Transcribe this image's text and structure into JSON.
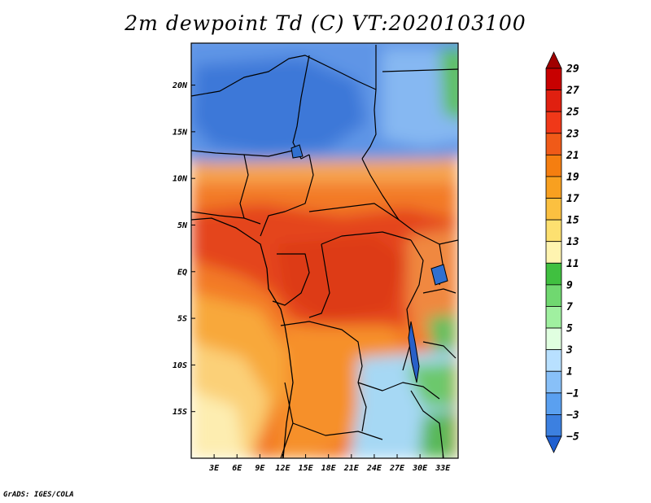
{
  "title": "2m dewpoint Td (C) VT:2020103100",
  "credit": "GrADS: IGES/COLA",
  "map": {
    "lat_labels": [
      "20N",
      "15N",
      "10N",
      "5N",
      "EQ",
      "5S",
      "10S",
      "15S"
    ],
    "lat_values": [
      20,
      15,
      10,
      5,
      0,
      -5,
      -10,
      -15
    ],
    "lon_labels": [
      "3E",
      "6E",
      "9E",
      "12E",
      "15E",
      "18E",
      "21E",
      "24E",
      "27E",
      "30E",
      "33E"
    ],
    "lon_values": [
      3,
      6,
      9,
      12,
      15,
      18,
      21,
      24,
      27,
      30,
      33
    ],
    "lon_range": [
      0,
      35
    ],
    "lat_range": [
      -20,
      24.5
    ],
    "variable": "2m dewpoint temperature",
    "units": "C"
  },
  "colorbar": {
    "labels": [
      "29",
      "27",
      "25",
      "23",
      "21",
      "19",
      "17",
      "15",
      "13",
      "11",
      "9",
      "7",
      "5",
      "3",
      "1",
      "−1",
      "−3",
      "−5"
    ],
    "colors": [
      "#a00000",
      "#c80000",
      "#e02010",
      "#f03818",
      "#f05a18",
      "#f57e10",
      "#f8a020",
      "#fbc040",
      "#fde070",
      "#fff4b0",
      "#40c040",
      "#70d870",
      "#a0f0a0",
      "#e0ffe0",
      "#b8e0ff",
      "#88c0f8",
      "#5aa0f0",
      "#3c80e0",
      "#2060d0"
    ]
  }
}
